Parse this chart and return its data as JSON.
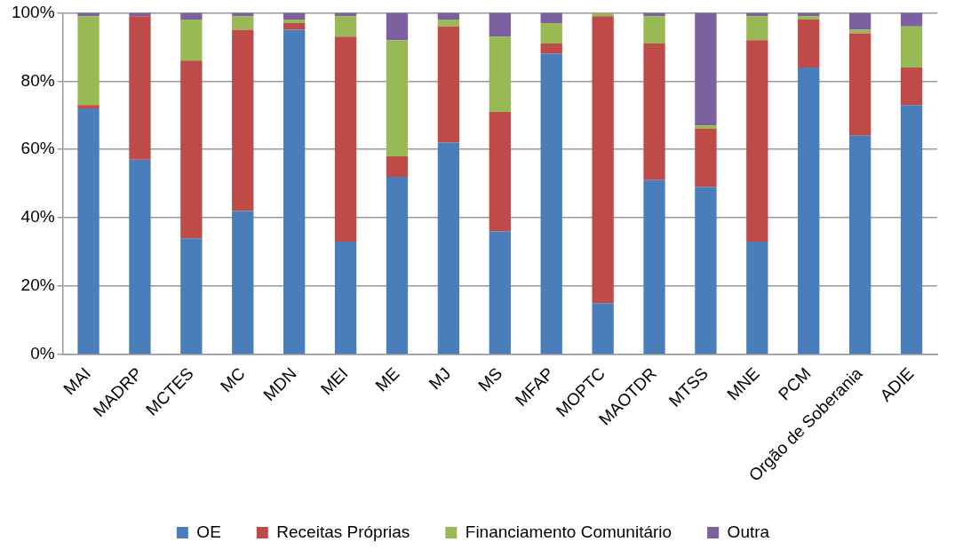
{
  "chart_data": {
    "type": "bar",
    "stacked": true,
    "categories": [
      "MAI",
      "MADRP",
      "MCTES",
      "MC",
      "MDN",
      "MEI",
      "ME",
      "MJ",
      "MS",
      "MFAP",
      "MOPTC",
      "MAOTDR",
      "MTSS",
      "MNE",
      "PCM",
      "Orgão de Soberania",
      "ADIE"
    ],
    "series": [
      {
        "name": "OE",
        "color": "#4a7ebb",
        "values": [
          72,
          57,
          34,
          42,
          95,
          33,
          52,
          62,
          36,
          88,
          15,
          51,
          49,
          33,
          84,
          64,
          73
        ]
      },
      {
        "name": "Receitas Próprias",
        "color": "#be4b48",
        "values": [
          1,
          42,
          52,
          53,
          2,
          60,
          6,
          34,
          35,
          3,
          84,
          40,
          17,
          59,
          14,
          30,
          11
        ]
      },
      {
        "name": "Financiamento Comunitário",
        "color": "#98b954",
        "values": [
          26,
          0,
          12,
          4,
          1,
          6,
          34,
          2,
          22,
          6,
          1,
          8,
          1,
          7,
          1,
          1,
          12
        ]
      },
      {
        "name": "Outra",
        "color": "#7d60a0",
        "values": [
          1,
          1,
          2,
          1,
          2,
          1,
          8,
          2,
          7,
          3,
          0,
          1,
          33,
          1,
          1,
          5,
          4
        ]
      }
    ],
    "ylim": [
      0,
      100
    ],
    "yticks": [
      {
        "value": 0,
        "label": "0%"
      },
      {
        "value": 20,
        "label": "20%"
      },
      {
        "value": 40,
        "label": "40%"
      },
      {
        "value": 60,
        "label": "60%"
      },
      {
        "value": 80,
        "label": "80%"
      },
      {
        "value": 100,
        "label": "100%"
      }
    ],
    "grid": "y",
    "legend": "bottom"
  }
}
